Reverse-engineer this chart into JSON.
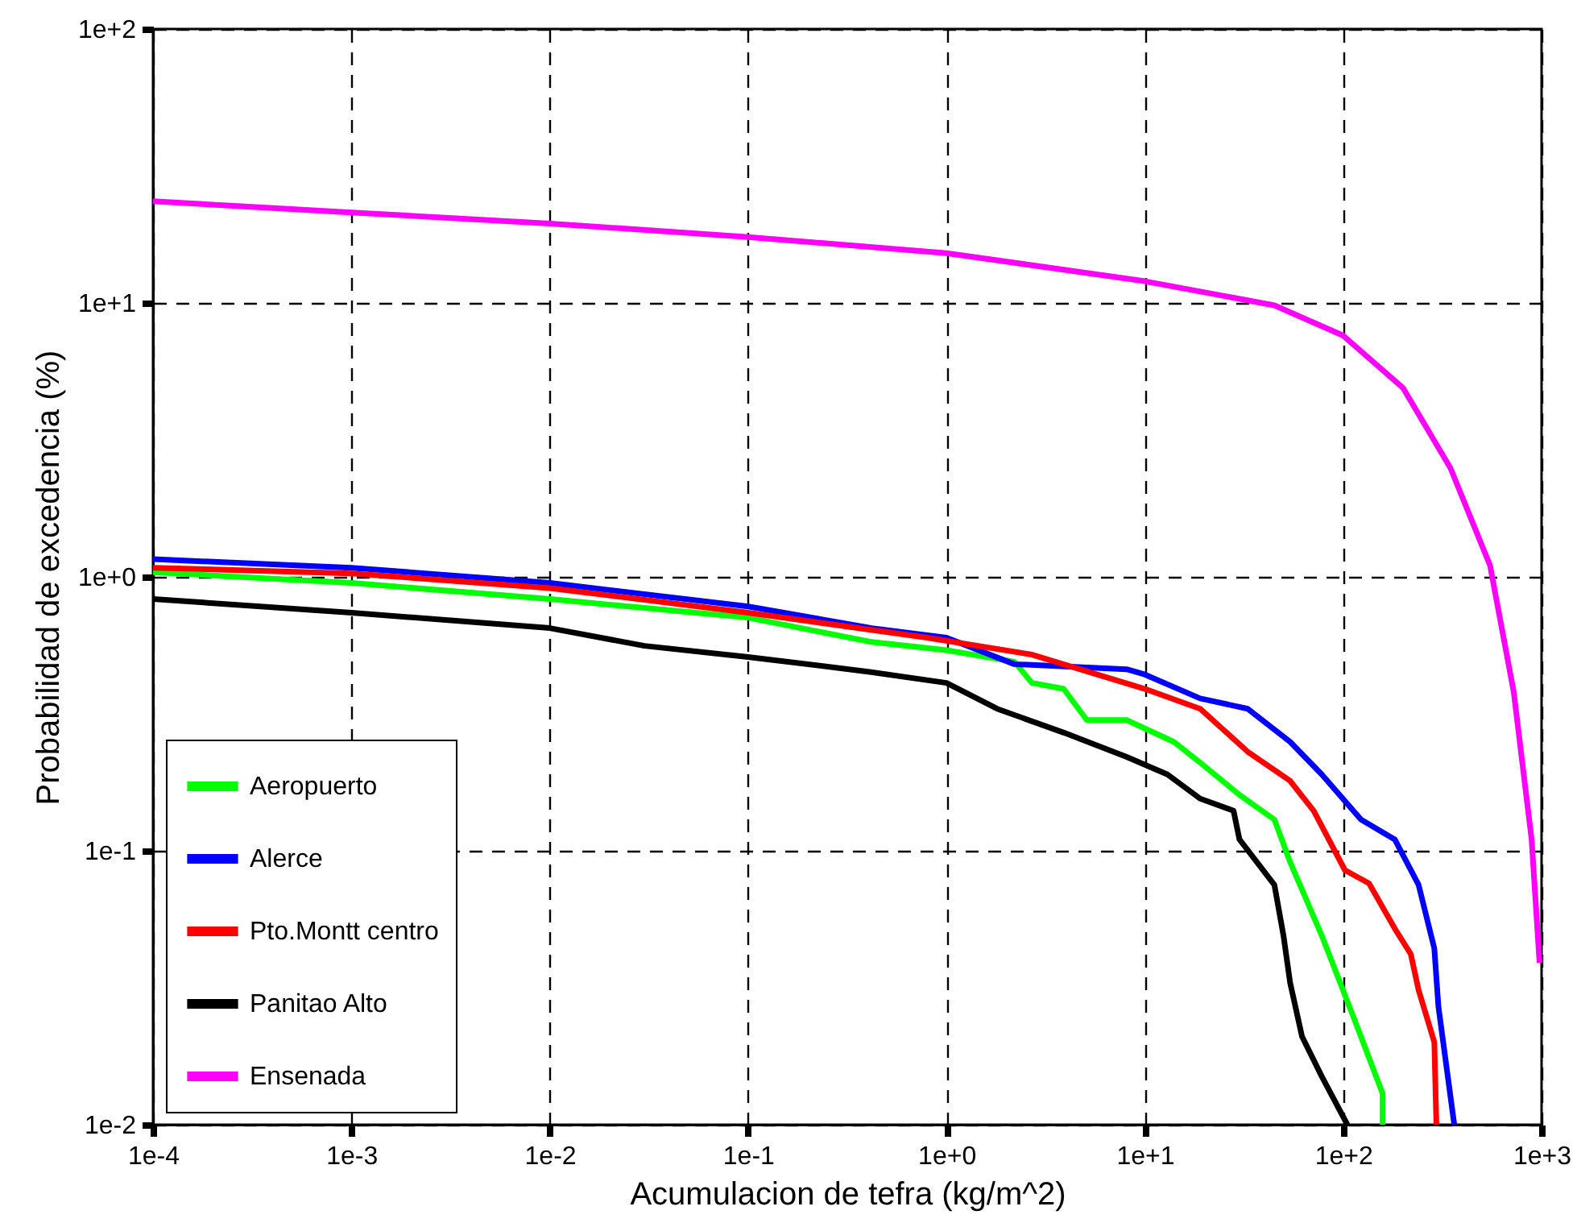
{
  "chart_data": {
    "type": "line",
    "xlabel": "Acumulacion de tefra (kg/m^2)",
    "ylabel": "Probabilidad de excedencia (%)",
    "log": "xy",
    "grid": true,
    "legend": "bottom left",
    "xlim": [
      0.0001,
      1000
    ],
    "ylim": [
      0.01,
      100
    ],
    "xticks": [
      {
        "value": 0.0001,
        "label": "1e-4"
      },
      {
        "value": 0.001,
        "label": "1e-3"
      },
      {
        "value": 0.01,
        "label": "1e-2"
      },
      {
        "value": 0.1,
        "label": "1e-1"
      },
      {
        "value": 1,
        "label": "1e+0"
      },
      {
        "value": 10,
        "label": "1e+1"
      },
      {
        "value": 100,
        "label": "1e+2"
      },
      {
        "value": 1000,
        "label": "1e+3"
      }
    ],
    "yticks": [
      {
        "value": 0.01,
        "label": "1e-2"
      },
      {
        "value": 0.1,
        "label": "1e-1"
      },
      {
        "value": 1,
        "label": "1e+0"
      },
      {
        "value": 10,
        "label": "1e+1"
      },
      {
        "value": 100,
        "label": "1e+2"
      }
    ],
    "series": [
      {
        "name": "Aeropuerto",
        "color": "#00ff00",
        "x": [
          0.0001,
          0.001,
          0.01,
          0.03,
          0.1,
          0.41,
          1,
          2.2,
          2.7,
          3.9,
          5.1,
          8.1,
          14,
          19,
          30,
          45,
          54,
          78,
          112,
          158,
          158
        ],
        "values": [
          1.04,
          0.95,
          0.83,
          0.77,
          0.71,
          0.58,
          0.54,
          0.49,
          0.41,
          0.39,
          0.3,
          0.3,
          0.25,
          0.21,
          0.16,
          0.13,
          0.091,
          0.049,
          0.025,
          0.013,
          0.01
        ]
      },
      {
        "name": "Alerce",
        "color": "#0000ff",
        "x": [
          0.0001,
          0.001,
          0.01,
          0.1,
          0.42,
          1,
          2.2,
          8.1,
          10,
          19,
          33,
          54,
          78,
          123,
          182,
          240,
          288,
          302,
          363
        ],
        "values": [
          1.16,
          1.08,
          0.95,
          0.78,
          0.65,
          0.6,
          0.48,
          0.46,
          0.44,
          0.36,
          0.33,
          0.25,
          0.19,
          0.13,
          0.11,
          0.075,
          0.044,
          0.027,
          0.01
        ]
      },
      {
        "name": "Pto.Montt centro",
        "color": "#ff0000",
        "x": [
          0.0001,
          0.001,
          0.01,
          0.1,
          0.8,
          2.7,
          10,
          19,
          33,
          54,
          71,
          102,
          135,
          182,
          219,
          240,
          288,
          295
        ],
        "values": [
          1.08,
          1.03,
          0.91,
          0.74,
          0.6,
          0.52,
          0.39,
          0.33,
          0.23,
          0.18,
          0.14,
          0.085,
          0.076,
          0.052,
          0.042,
          0.031,
          0.02,
          0.01
        ]
      },
      {
        "name": "Panitao Alto",
        "color": "#000000",
        "x": [
          0.0001,
          0.001,
          0.01,
          0.03,
          0.1,
          0.41,
          1,
          1.8,
          3.9,
          8.1,
          13,
          19,
          28,
          30,
          45,
          50,
          54,
          62,
          78,
          105
        ],
        "values": [
          0.83,
          0.74,
          0.65,
          0.56,
          0.51,
          0.45,
          0.41,
          0.33,
          0.27,
          0.22,
          0.19,
          0.155,
          0.14,
          0.11,
          0.075,
          0.049,
          0.033,
          0.021,
          0.015,
          0.01
        ]
      },
      {
        "name": "Ensenada",
        "color": "#ff00ff",
        "x": [
          0.0001,
          0.001,
          0.01,
          0.1,
          1,
          10,
          45,
          100,
          200,
          347,
          550,
          724,
          891,
          977
        ],
        "values": [
          23.5,
          21.4,
          19.5,
          17.4,
          15.2,
          12.0,
          9.8,
          7.6,
          4.9,
          2.5,
          1.1,
          0.38,
          0.11,
          0.039
        ]
      }
    ]
  }
}
